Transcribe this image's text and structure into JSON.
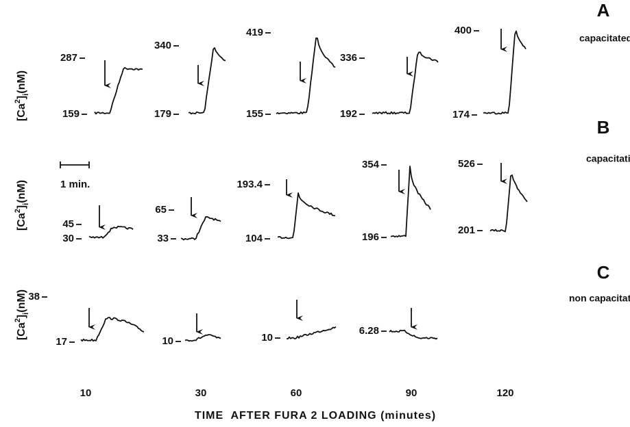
{
  "panels": [
    {
      "letter": "A",
      "condition": "capacitated",
      "traces": [
        {
          "high": "287",
          "low": "159"
        },
        {
          "high": "340",
          "low": "179"
        },
        {
          "high": "419",
          "low": "155"
        },
        {
          "high": "336",
          "low": "192"
        },
        {
          "high": "400",
          "low": "174"
        }
      ]
    },
    {
      "letter": "B",
      "condition": "capacitating",
      "traces": [
        {
          "high": "45",
          "low": "30"
        },
        {
          "high": "65",
          "low": "33"
        },
        {
          "high": "193.4",
          "low": "104"
        },
        {
          "high": "354",
          "low": "196"
        },
        {
          "high": "526",
          "low": "201"
        }
      ]
    },
    {
      "letter": "C",
      "condition": "non capacitated",
      "traces": [
        {
          "high": "38",
          "low": "17"
        },
        {
          "low": "10"
        },
        {
          "low": "10"
        },
        {
          "low": "6.28"
        }
      ]
    }
  ],
  "y_label": {
    "open": "[Ca",
    "sup": "2",
    "close": "]",
    "sub": "i",
    "unit": "(nM)"
  },
  "scale_bar": "1 min.",
  "x_labels": [
    "10",
    "30",
    "60",
    "90",
    "120"
  ],
  "x_axis_title": "TIME  AFTER FURA 2 LOADING (minutes)"
}
